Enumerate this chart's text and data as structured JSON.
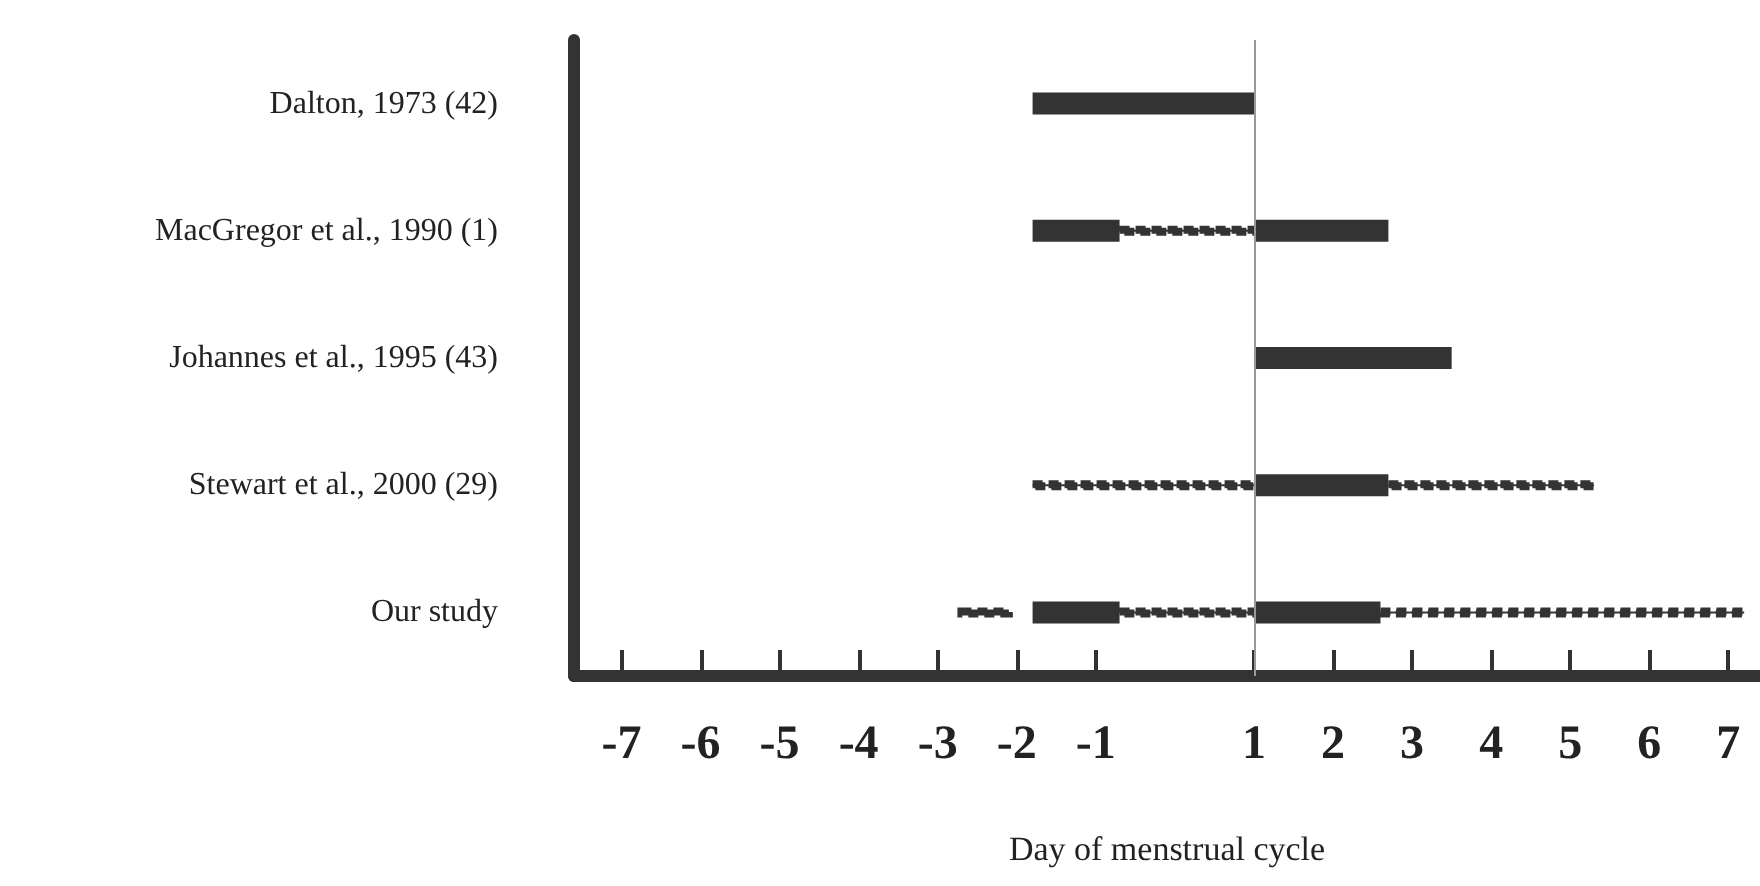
{
  "chart_data": {
    "type": "bar",
    "orientation": "horizontal",
    "xlabel": "Day of menstrual cycle",
    "categories": [
      "Dalton, 1973 (42)",
      "MacGregor et al., 1990 (1)",
      "Johannes et al., 1995 (43)",
      "Stewart et al., 2000 (29)",
      "Our study"
    ],
    "series": [
      {
        "color": "#333333",
        "line_style": "solid",
        "base": [
          -1.8,
          -1.8,
          null,
          null,
          -1.8
        ],
        "values": [
          2.8,
          1.1,
          null,
          null,
          1.1
        ]
      },
      {
        "color": "#333333",
        "line_style": "solid",
        "base": [
          null,
          1,
          1,
          1,
          1
        ],
        "values": [
          null,
          1.7,
          2.5,
          1.7,
          1.6
        ]
      },
      {
        "color": "#333333",
        "line_style": "dotted",
        "base": [
          null,
          null,
          null,
          null,
          -2.7
        ],
        "values": [
          null,
          null,
          null,
          null,
          0.6
        ]
      },
      {
        "color": "#333333",
        "line_style": "dotted",
        "base": [
          null,
          -0.7,
          null,
          -1.8,
          -0.7
        ],
        "values": [
          null,
          1.7,
          null,
          2.8,
          1.7
        ]
      },
      {
        "color": "#333333",
        "line_style": "dotted",
        "base": [
          null,
          null,
          null,
          2.7,
          2.6
        ],
        "values": [
          null,
          null,
          null,
          2.6,
          4.6
        ]
      }
    ],
    "xlim": [
      -7.6,
      7.4
    ],
    "xticks": [
      -7,
      -6,
      -5,
      -4,
      -3,
      -2,
      -1,
      1,
      2,
      3,
      4,
      5,
      6,
      7
    ],
    "ref_lines": [
      {
        "axis": "x",
        "value": 1,
        "color": "#999999"
      }
    ],
    "grid": false
  }
}
